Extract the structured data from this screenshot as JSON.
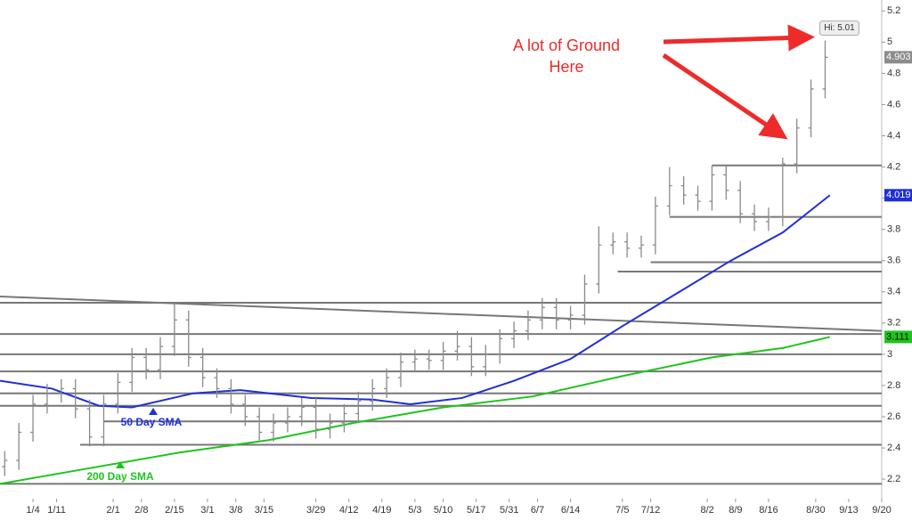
{
  "chart_data": {
    "type": "ohlc",
    "xlim": [
      -7,
      180
    ],
    "ylim": [
      2.075,
      5.27
    ],
    "xticks": [
      {
        "value": 0,
        "label": "1/4"
      },
      {
        "value": 5,
        "label": "1/11"
      },
      {
        "value": 17,
        "label": "2/1"
      },
      {
        "value": 23,
        "label": "2/8"
      },
      {
        "value": 30,
        "label": "2/15"
      },
      {
        "value": 37,
        "label": "3/1"
      },
      {
        "value": 43,
        "label": "3/8"
      },
      {
        "value": 49,
        "label": "3/15"
      },
      {
        "value": 60,
        "label": "3/29"
      },
      {
        "value": 67,
        "label": "4/12"
      },
      {
        "value": 74,
        "label": "4/19"
      },
      {
        "value": 81,
        "label": "5/3"
      },
      {
        "value": 87,
        "label": "5/10"
      },
      {
        "value": 94,
        "label": "5/17"
      },
      {
        "value": 101,
        "label": "5/31"
      },
      {
        "value": 107,
        "label": "6/7"
      },
      {
        "value": 114,
        "label": "6/14"
      },
      {
        "value": 125,
        "label": "7/5"
      },
      {
        "value": 131,
        "label": "7/12"
      },
      {
        "value": 143,
        "label": "8/2"
      },
      {
        "value": 149,
        "label": "8/9"
      },
      {
        "value": 156,
        "label": "8/16"
      },
      {
        "value": 166,
        "label": "8/30"
      },
      {
        "value": 173,
        "label": "9/13"
      },
      {
        "value": 180,
        "label": "9/20"
      }
    ],
    "yticks": [
      2.2,
      2.4,
      2.6,
      2.8,
      3,
      3.2,
      3.4,
      3.6,
      3.8,
      4,
      4.2,
      4.4,
      4.6,
      4.8,
      5,
      5.2
    ],
    "bar_color": "#8a8a8a",
    "bars": {
      "x": [
        -6,
        -3,
        0,
        3,
        6,
        9,
        12,
        15,
        18,
        21,
        24,
        27,
        30,
        33,
        36,
        39,
        42,
        45,
        48,
        51,
        54,
        57,
        60,
        63,
        66,
        69,
        72,
        75,
        78,
        81,
        84,
        87,
        90,
        93,
        96,
        99,
        102,
        105,
        108,
        111,
        114,
        117,
        120,
        123,
        126,
        129,
        132,
        135,
        138,
        141,
        144,
        147,
        150,
        153,
        156,
        159,
        162,
        165,
        168
      ],
      "open": [
        2.28,
        2.32,
        2.5,
        2.68,
        2.75,
        2.78,
        2.65,
        2.47,
        2.68,
        2.82,
        2.98,
        2.9,
        3.05,
        3.22,
        2.98,
        2.85,
        2.78,
        2.68,
        2.6,
        2.5,
        2.56,
        2.6,
        2.66,
        2.52,
        2.56,
        2.62,
        2.7,
        2.78,
        2.85,
        2.95,
        2.97,
        2.96,
        3.02,
        3.05,
        2.92,
        3.0,
        3.1,
        3.15,
        3.22,
        3.3,
        3.22,
        3.25,
        3.45,
        3.7,
        3.72,
        3.68,
        3.7,
        3.95,
        4.08,
        4.02,
        3.98,
        4.15,
        4.05,
        3.9,
        3.85,
        3.88,
        4.22,
        4.45,
        4.7
      ],
      "high": [
        2.38,
        2.56,
        2.74,
        2.81,
        2.84,
        2.84,
        2.71,
        2.74,
        2.88,
        3.04,
        3.04,
        3.11,
        3.33,
        3.28,
        3.04,
        2.91,
        2.84,
        2.74,
        2.66,
        2.62,
        2.66,
        2.72,
        2.72,
        2.62,
        2.68,
        2.76,
        2.84,
        2.91,
        3.01,
        3.03,
        3.03,
        3.08,
        3.15,
        3.11,
        3.06,
        3.16,
        3.21,
        3.28,
        3.36,
        3.36,
        3.31,
        3.51,
        3.82,
        3.78,
        3.78,
        3.76,
        4.01,
        4.2,
        4.14,
        4.08,
        4.21,
        4.21,
        4.11,
        3.96,
        3.94,
        4.26,
        4.51,
        4.76,
        5.01
      ],
      "low": [
        2.22,
        2.26,
        2.44,
        2.62,
        2.69,
        2.59,
        2.41,
        2.41,
        2.62,
        2.76,
        2.84,
        2.84,
        2.99,
        2.92,
        2.79,
        2.72,
        2.62,
        2.54,
        2.44,
        2.44,
        2.5,
        2.54,
        2.46,
        2.46,
        2.5,
        2.56,
        2.64,
        2.72,
        2.79,
        2.89,
        2.9,
        2.9,
        2.96,
        2.86,
        2.86,
        2.94,
        3.04,
        3.09,
        3.16,
        3.16,
        3.16,
        3.19,
        3.39,
        3.64,
        3.62,
        3.62,
        3.64,
        3.89,
        3.96,
        3.92,
        3.92,
        3.99,
        3.84,
        3.79,
        3.79,
        3.82,
        4.16,
        4.39,
        4.64
      ],
      "close": [
        2.32,
        2.5,
        2.68,
        2.75,
        2.78,
        2.65,
        2.47,
        2.68,
        2.82,
        2.98,
        2.9,
        3.05,
        3.22,
        2.98,
        2.85,
        2.78,
        2.68,
        2.6,
        2.5,
        2.56,
        2.6,
        2.66,
        2.52,
        2.56,
        2.62,
        2.7,
        2.78,
        2.85,
        2.95,
        2.97,
        2.96,
        3.02,
        3.05,
        2.92,
        3.0,
        3.1,
        3.15,
        3.22,
        3.3,
        3.22,
        3.25,
        3.45,
        3.7,
        3.72,
        3.68,
        3.7,
        3.95,
        4.08,
        4.02,
        3.98,
        4.15,
        4.05,
        3.9,
        3.85,
        3.88,
        4.22,
        4.45,
        4.7,
        4.903
      ]
    },
    "series": [
      {
        "name": "50 Day SMA",
        "color": "#1f2fd6",
        "x": [
          -7,
          4,
          14,
          21,
          34,
          44,
          59,
          72,
          80,
          91,
          102,
          114,
          125,
          136,
          148,
          159,
          169
        ],
        "values": [
          2.83,
          2.78,
          2.67,
          2.66,
          2.75,
          2.77,
          2.72,
          2.71,
          2.68,
          2.72,
          2.83,
          2.97,
          3.18,
          3.38,
          3.6,
          3.78,
          4.019
        ]
      },
      {
        "name": "200 Day SMA",
        "color": "#1ec41e",
        "x": [
          -7,
          12,
          31,
          50,
          68,
          87,
          106,
          125,
          144,
          159,
          169
        ],
        "values": [
          2.17,
          2.27,
          2.37,
          2.45,
          2.56,
          2.66,
          2.73,
          2.86,
          2.98,
          3.04,
          3.111
        ]
      }
    ],
    "levels": [
      {
        "y": 4.21,
        "x_start": 144
      },
      {
        "y": 3.88,
        "x_start": 135
      },
      {
        "y": 3.59,
        "x_start": 131
      },
      {
        "y": 3.53,
        "x_start": 124
      },
      {
        "y": 3.33,
        "x_start": -7
      },
      {
        "y": 3.13,
        "x_start": -7
      },
      {
        "y": 3.0,
        "x_start": -7
      },
      {
        "y": 2.89,
        "x_start": -7
      },
      {
        "y": 2.75,
        "x_start": -7
      },
      {
        "y": 2.67,
        "x_start": -7
      },
      {
        "y": 2.57,
        "x_start": 15
      },
      {
        "y": 2.42,
        "x_start": 10
      },
      {
        "y": 2.17,
        "x_start": -7
      }
    ],
    "trendline": {
      "x": [
        -7,
        180
      ],
      "y": [
        3.37,
        3.15
      ]
    },
    "price_labels": [
      {
        "value": 4.903,
        "color": "#8c8c8c",
        "text_color": "#ffffff"
      },
      {
        "value": 4.019,
        "color": "#1f2fd6",
        "text_color": "#ffffff"
      },
      {
        "value": 3.111,
        "color": "#1ec41e",
        "text_color": "#111111"
      }
    ],
    "high_label": "Hi: 5.01",
    "annotation": [
      "A lot of Ground",
      "Here"
    ]
  }
}
